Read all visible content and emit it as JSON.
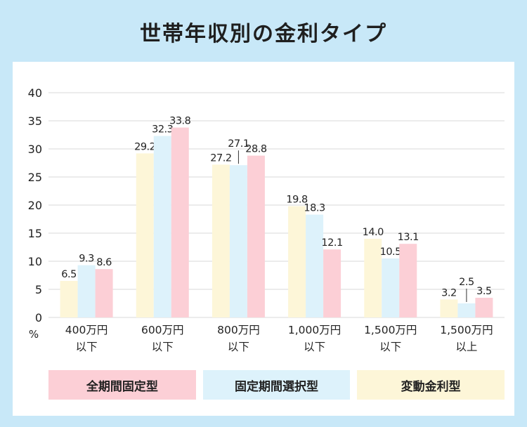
{
  "title": "世帯年収別の金利タイプ",
  "colors": {
    "page_bg": "#c8e8f8",
    "panel_bg": "#ffffff",
    "grid": "#d9d9d9",
    "hendo": "#fdf6d8",
    "kotei_sentaku": "#ddf2fb",
    "zenkikan": "#fccfd6"
  },
  "chart_data": {
    "type": "bar",
    "title": "世帯年収別の金利タイプ",
    "ylabel": "%",
    "xlabel": "",
    "ylim": [
      0,
      40
    ],
    "yticks": [
      "0",
      "5",
      "10",
      "15",
      "20",
      "25",
      "30",
      "35",
      "40"
    ],
    "grid": true,
    "categories": [
      [
        "400万円",
        "以下"
      ],
      [
        "600万円",
        "以下"
      ],
      [
        "800万円",
        "以下"
      ],
      [
        "1,000万円",
        "以下"
      ],
      [
        "1,500万円",
        "以下"
      ],
      [
        "1,500万円",
        "以上"
      ]
    ],
    "series": [
      {
        "name": "変動金利型",
        "color_key": "hendo",
        "values": [
          6.5,
          29.2,
          27.2,
          19.8,
          14.0,
          3.2
        ],
        "labels": [
          "6.5",
          "29.2",
          "27.2",
          "19.8",
          "14.0",
          "3.2"
        ]
      },
      {
        "name": "固定期間選択型",
        "color_key": "kotei_sentaku",
        "values": [
          9.3,
          32.3,
          27.1,
          18.3,
          10.5,
          2.5
        ],
        "labels": [
          "9.3",
          "32.3",
          "27.1",
          "18.3",
          "10.5",
          "2.5"
        ]
      },
      {
        "name": "全期間固定型",
        "color_key": "zenkikan",
        "values": [
          8.6,
          33.8,
          28.8,
          12.1,
          13.1,
          3.5
        ],
        "labels": [
          "8.6",
          "33.8",
          "28.8",
          "12.1",
          "13.1",
          "3.5"
        ]
      }
    ],
    "legend": {
      "placement": "bottom",
      "order": [
        "全期間固定型",
        "固定期間選択型",
        "変動金利型"
      ]
    }
  }
}
